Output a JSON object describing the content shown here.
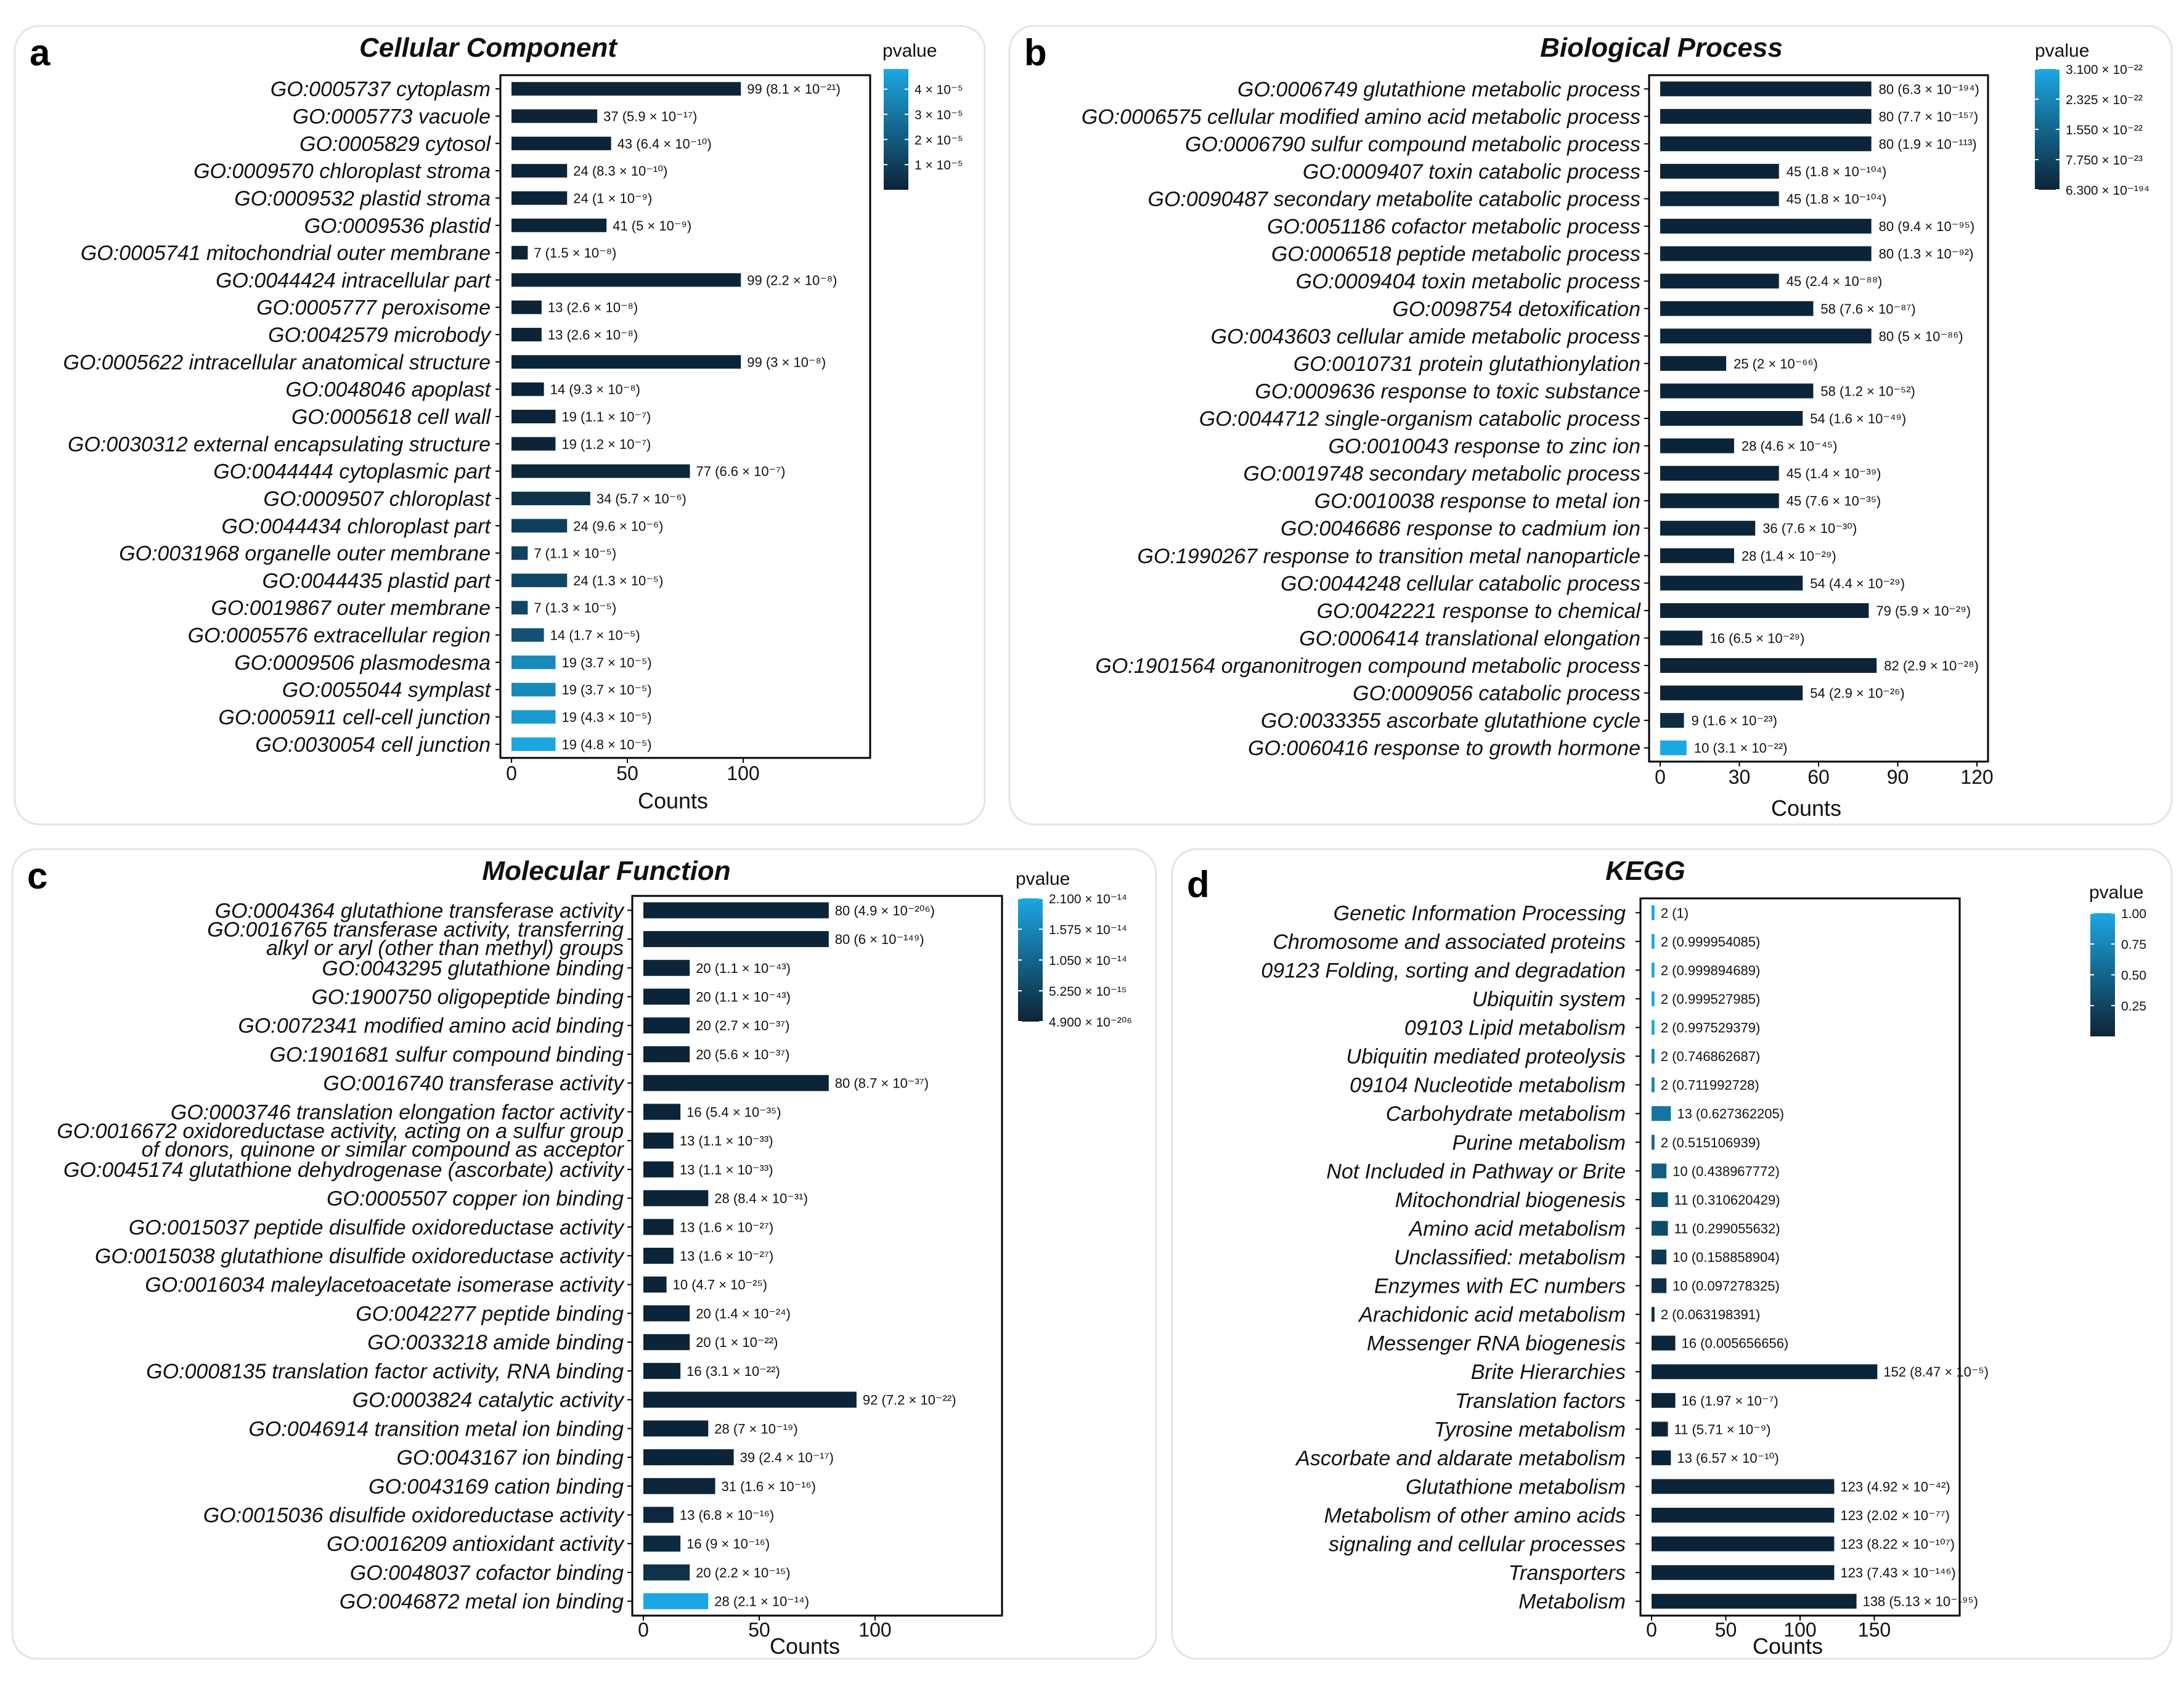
{
  "chart_data": [
    {
      "id": "cc",
      "panel_tag": "a",
      "type": "bar",
      "orientation": "horizontal",
      "title": "Cellular Component",
      "xlabel": "Counts",
      "xlim": [
        0,
        150
      ],
      "xticks": [
        "0",
        "50",
        "100"
      ],
      "legend_title": "pvalue",
      "legend_range": [
        0,
        4.8e-05
      ],
      "legend_ticks": [
        {
          "value": 4e-05,
          "label": "4 × 10⁻⁵"
        },
        {
          "value": 3e-05,
          "label": "3 × 10⁻⁵"
        },
        {
          "value": 2e-05,
          "label": "2 × 10⁻⁵"
        },
        {
          "value": 1e-05,
          "label": "1 × 10⁻⁵"
        }
      ],
      "categories": [
        "GO:0005737 cytoplasm",
        "GO:0005773 vacuole",
        "GO:0005829 cytosol",
        "GO:0009570 chloroplast stroma",
        "GO:0009532 plastid stroma",
        "GO:0009536 plastid",
        "GO:0005741 mitochondrial outer membrane",
        "GO:0044424 intracellular part",
        "GO:0005777 peroxisome",
        "GO:0042579 microbody",
        "GO:0005622 intracellular anatomical structure",
        "GO:0048046 apoplast",
        "GO:0005618 cell wall",
        "GO:0030312 external encapsulating structure",
        "GO:0044444 cytoplasmic part",
        "GO:0009507 chloroplast",
        "GO:0044434 chloroplast part",
        "GO:0031968 organelle outer membrane",
        "GO:0044435 plastid part",
        "GO:0019867 outer membrane",
        "GO:0005576 extracellular region",
        "GO:0009506 plasmodesma",
        "GO:0055044 symplast",
        "GO:0005911 cell-cell junction",
        "GO:0030054 cell junction"
      ],
      "values": [
        99,
        37,
        43,
        24,
        24,
        41,
        7,
        99,
        13,
        13,
        99,
        14,
        19,
        19,
        77,
        34,
        24,
        7,
        24,
        7,
        14,
        19,
        19,
        19,
        19
      ],
      "pvalues": [
        8.1e-21,
        5.9e-17,
        6.4e-10,
        8.3e-10,
        1e-09,
        5e-09,
        1.5e-08,
        2.2e-08,
        2.6e-08,
        2.6e-08,
        3e-08,
        9.3e-08,
        1.1e-07,
        1.2e-07,
        6.6e-07,
        5.7e-06,
        9.6e-06,
        1.1e-05,
        1.3e-05,
        1.3e-05,
        1.7e-05,
        3.7e-05,
        3.7e-05,
        4.3e-05,
        4.8e-05
      ],
      "pvalue_labels": [
        "8.1 × 10⁻²¹",
        "5.9 × 10⁻¹⁷",
        "6.4 × 10⁻¹⁰",
        "8.3 × 10⁻¹⁰",
        "1 × 10⁻⁹",
        "5 × 10⁻⁹",
        "1.5 × 10⁻⁸",
        "2.2 × 10⁻⁸",
        "2.6 × 10⁻⁸",
        "2.6 × 10⁻⁸",
        "3 × 10⁻⁸",
        "9.3 × 10⁻⁸",
        "1.1 × 10⁻⁷",
        "1.2 × 10⁻⁷",
        "6.6 × 10⁻⁷",
        "5.7 × 10⁻⁶",
        "9.6 × 10⁻⁶",
        "1.1 × 10⁻⁵",
        "1.3 × 10⁻⁵",
        "1.3 × 10⁻⁵",
        "1.7 × 10⁻⁵",
        "3.7 × 10⁻⁵",
        "3.7 × 10⁻⁵",
        "4.3 × 10⁻⁵",
        "4.8 × 10⁻⁵"
      ]
    },
    {
      "id": "bp",
      "panel_tag": "b",
      "type": "bar",
      "orientation": "horizontal",
      "title": "Biological Process",
      "xlabel": "Counts",
      "xlim": [
        0,
        120
      ],
      "xticks": [
        "0",
        "30",
        "60",
        "90",
        "120"
      ],
      "legend_title": "pvalue",
      "legend_range": [
        6.3e-194,
        3.1e-22
      ],
      "legend_ticks": [
        {
          "value": 3.1e-22,
          "label": "3.100 × 10⁻²²"
        },
        {
          "value": 2.325e-22,
          "label": "2.325 × 10⁻²²"
        },
        {
          "value": 1.55e-22,
          "label": "1.550 × 10⁻²²"
        },
        {
          "value": 7.75e-23,
          "label": "7.750 × 10⁻²³"
        },
        {
          "value": 6.3e-194,
          "label": "6.300 × 10⁻¹⁹⁴"
        }
      ],
      "categories": [
        "GO:0006749 glutathione metabolic process",
        "GO:0006575 cellular modified amino acid metabolic process",
        "GO:0006790 sulfur compound metabolic process",
        "GO:0009407 toxin catabolic process",
        "GO:0090487 secondary metabolite catabolic process",
        "GO:0051186 cofactor metabolic process",
        "GO:0006518 peptide metabolic process",
        "GO:0009404 toxin metabolic process",
        "GO:0098754 detoxification",
        "GO:0043603 cellular amide metabolic process",
        "GO:0010731 protein glutathionylation",
        "GO:0009636 response to toxic substance",
        "GO:0044712 single-organism catabolic process",
        "GO:0010043 response to zinc ion",
        "GO:0019748 secondary metabolic process",
        "GO:0010038 response to metal ion",
        "GO:0046686 response to cadmium ion",
        "GO:1990267 response to transition metal nanoparticle",
        "GO:0044248 cellular catabolic process",
        "GO:0042221 response to chemical",
        "GO:0006414 translational elongation",
        "GO:1901564 organonitrogen compound metabolic process",
        "GO:0009056 catabolic process",
        "GO:0033355 ascorbate glutathione cycle",
        "GO:0060416 response to growth hormone"
      ],
      "values": [
        80,
        80,
        80,
        45,
        45,
        80,
        80,
        45,
        58,
        80,
        25,
        58,
        54,
        28,
        45,
        45,
        36,
        28,
        54,
        79,
        16,
        82,
        54,
        9,
        10
      ],
      "pvalues": [
        6.3e-194,
        7.7e-157,
        1.9e-113,
        1.8e-104,
        1.8e-104,
        9.4e-95,
        1.3e-92,
        2.4e-88,
        7.6e-87,
        5e-86,
        2e-66,
        1.2e-52,
        1.6e-49,
        4.6e-45,
        1.4e-39,
        7.6e-35,
        7.6e-30,
        1.4e-29,
        4.4e-29,
        5.9e-29,
        6.5e-29,
        2.9e-28,
        2.9e-26,
        1.6e-23,
        3.1e-22
      ],
      "pvalue_labels": [
        "6.3 × 10⁻¹⁹⁴",
        "7.7 × 10⁻¹⁵⁷",
        "1.9 × 10⁻¹¹³",
        "1.8 × 10⁻¹⁰⁴",
        "1.8 × 10⁻¹⁰⁴",
        "9.4 × 10⁻⁹⁵",
        "1.3 × 10⁻⁹²",
        "2.4 × 10⁻⁸⁸",
        "7.6 × 10⁻⁸⁷",
        "5 × 10⁻⁸⁶",
        "2 × 10⁻⁶⁶",
        "1.2 × 10⁻⁵²",
        "1.6 × 10⁻⁴⁹",
        "4.6 × 10⁻⁴⁵",
        "1.4 × 10⁻³⁹",
        "7.6 × 10⁻³⁵",
        "7.6 × 10⁻³⁰",
        "1.4 × 10⁻²⁹",
        "4.4 × 10⁻²⁹",
        "5.9 × 10⁻²⁹",
        "6.5 × 10⁻²⁹",
        "2.9 × 10⁻²⁸",
        "2.9 × 10⁻²⁶",
        "1.6 × 10⁻²³",
        "3.1 × 10⁻²²"
      ]
    },
    {
      "id": "mf",
      "panel_tag": "c",
      "type": "bar",
      "orientation": "horizontal",
      "title": "Molecular Function",
      "xlabel": "Counts",
      "xlim": [
        0,
        150
      ],
      "xticks": [
        "0",
        "50",
        "100"
      ],
      "legend_title": "pvalue",
      "legend_range": [
        4.9e-206,
        2.1e-14
      ],
      "legend_ticks": [
        {
          "value": 2.1e-14,
          "label": "2.100 × 10⁻¹⁴"
        },
        {
          "value": 1.575e-14,
          "label": "1.575 × 10⁻¹⁴"
        },
        {
          "value": 1.05e-14,
          "label": "1.050 × 10⁻¹⁴"
        },
        {
          "value": 5.25e-15,
          "label": "5.250 × 10⁻¹⁵"
        },
        {
          "value": 4.9e-206,
          "label": "4.900 × 10⁻²⁰⁶"
        }
      ],
      "categories": [
        "GO:0004364 glutathione transferase activity",
        "GO:0016765 transferase activity, transferring|alkyl or aryl (other than methyl) groups",
        "GO:0043295 glutathione binding",
        "GO:1900750 oligopeptide binding",
        "GO:0072341 modified amino acid binding",
        "GO:1901681 sulfur compound binding",
        "GO:0016740 transferase activity",
        "GO:0003746 translation elongation factor activity",
        "GO:0016672 oxidoreductase activity, acting on a sulfur group|of donors, quinone or similar compound as acceptor",
        "GO:0045174 glutathione dehydrogenase (ascorbate) activity",
        "GO:0005507 copper ion binding",
        "GO:0015037 peptide disulfide oxidoreductase activity",
        "GO:0015038 glutathione disulfide oxidoreductase activity",
        "GO:0016034 maleylacetoacetate isomerase activity",
        "GO:0042277 peptide binding",
        "GO:0033218 amide binding",
        "GO:0008135 translation factor activity, RNA binding",
        "GO:0003824 catalytic activity",
        "GO:0046914 transition metal ion binding",
        "GO:0043167 ion binding",
        "GO:0043169 cation binding",
        "GO:0015036 disulfide oxidoreductase activity",
        "GO:0016209 antioxidant activity",
        "GO:0048037 cofactor binding",
        "GO:0046872 metal ion binding"
      ],
      "values": [
        80,
        80,
        20,
        20,
        20,
        20,
        80,
        16,
        13,
        13,
        28,
        13,
        13,
        10,
        20,
        20,
        16,
        92,
        28,
        39,
        31,
        13,
        16,
        20,
        28
      ],
      "pvalues": [
        4.9e-206,
        6e-149,
        1.1e-43,
        1.1e-43,
        2.7e-37,
        5.6e-37,
        8.7e-37,
        5.4e-35,
        1.1e-33,
        1.1e-33,
        8.4e-31,
        1.6e-27,
        1.6e-27,
        4.7e-25,
        1.4e-24,
        1e-22,
        3.1e-22,
        7.2e-22,
        7e-19,
        2.4e-17,
        1.6e-16,
        6.8e-16,
        9e-16,
        2.2e-15,
        2.1e-14
      ],
      "pvalue_labels": [
        "4.9 × 10⁻²⁰⁶",
        "6 × 10⁻¹⁴⁹",
        "1.1 × 10⁻⁴³",
        "1.1 × 10⁻⁴³",
        "2.7 × 10⁻³⁷",
        "5.6 × 10⁻³⁷",
        "8.7 × 10⁻³⁷",
        "5.4 × 10⁻³⁵",
        "1.1 × 10⁻³³",
        "1.1 × 10⁻³³",
        "8.4 × 10⁻³¹",
        "1.6 × 10⁻²⁷",
        "1.6 × 10⁻²⁷",
        "4.7 × 10⁻²⁵",
        "1.4 × 10⁻²⁴",
        "1 × 10⁻²²",
        "3.1 × 10⁻²²",
        "7.2 × 10⁻²²",
        "7 × 10⁻¹⁹",
        "2.4 × 10⁻¹⁷",
        "1.6 × 10⁻¹⁶",
        "6.8 × 10⁻¹⁶",
        "9 × 10⁻¹⁶",
        "2.2 × 10⁻¹⁵",
        "2.1 × 10⁻¹⁴"
      ]
    },
    {
      "id": "kegg",
      "panel_tag": "d",
      "type": "bar",
      "orientation": "horizontal",
      "title": "KEGG",
      "xlabel": "Counts",
      "xlim": [
        0,
        200
      ],
      "xticks": [
        "0",
        "50",
        "100",
        "150"
      ],
      "legend_title": "pvalue",
      "legend_range": [
        0,
        1.0
      ],
      "legend_ticks": [
        {
          "value": 1.0,
          "label": "1.00"
        },
        {
          "value": 0.75,
          "label": "0.75"
        },
        {
          "value": 0.5,
          "label": "0.50"
        },
        {
          "value": 0.25,
          "label": "0.25"
        }
      ],
      "categories": [
        "Genetic Information Processing",
        "Chromosome and associated proteins",
        "09123 Folding, sorting and degradation",
        "Ubiquitin system",
        "09103 Lipid metabolism",
        "Ubiquitin mediated proteolysis",
        "09104 Nucleotide metabolism",
        "Carbohydrate metabolism",
        "Purine metabolism",
        "Not Included in Pathway or Brite",
        "Mitochondrial biogenesis",
        "Amino acid metabolism",
        "Unclassified: metabolism",
        "Enzymes with EC numbers",
        "Arachidonic acid metabolism",
        "Messenger RNA biogenesis",
        "Brite Hierarchies",
        "Translation factors",
        "Tyrosine metabolism",
        "Ascorbate and aldarate metabolism",
        "Glutathione metabolism",
        "Metabolism of other amino acids",
        "signaling and cellular processes",
        "Transporters",
        "Metabolism"
      ],
      "values": [
        2,
        2,
        2,
        2,
        2,
        2,
        2,
        13,
        2,
        10,
        11,
        11,
        10,
        10,
        2,
        16,
        152,
        16,
        11,
        13,
        123,
        123,
        123,
        123,
        138
      ],
      "pvalues": [
        1,
        0.999954085,
        0.999894689,
        0.999527985,
        0.997529379,
        0.746862687,
        0.711992728,
        0.627362205,
        0.515106939,
        0.438967772,
        0.310620429,
        0.299055632,
        0.158858904,
        0.097278325,
        0.063198391,
        0.005656656,
        8.47e-05,
        1.97e-07,
        5.71e-09,
        6.57e-10,
        4.92e-42,
        2.02e-77,
        8.22e-107,
        7.43e-146,
        5.13e-195
      ],
      "pvalue_labels": [
        "1",
        "0.999954085",
        "0.999894689",
        "0.999527985",
        "0.997529379",
        "0.746862687",
        "0.711992728",
        "0.627362205",
        "0.515106939",
        "0.438967772",
        "0.310620429",
        "0.299055632",
        "0.158858904",
        "0.097278325",
        "0.063198391",
        "0.005656656",
        "8.47 × 10⁻⁵",
        "1.97 × 10⁻⁷",
        "5.71 × 10⁻⁹",
        "6.57 × 10⁻¹⁰",
        "4.92 × 10⁻⁴²",
        "2.02 × 10⁻⁷⁷",
        "8.22 × 10⁻¹⁰⁷",
        "7.43 × 10⁻¹⁴⁶",
        "5.13 × 10⁻¹⁹⁵"
      ]
    }
  ],
  "colors": {
    "low": "#0c2438",
    "high": "#1ca7e2",
    "panel_border": "#e3e3e3",
    "axis": "#000000"
  }
}
